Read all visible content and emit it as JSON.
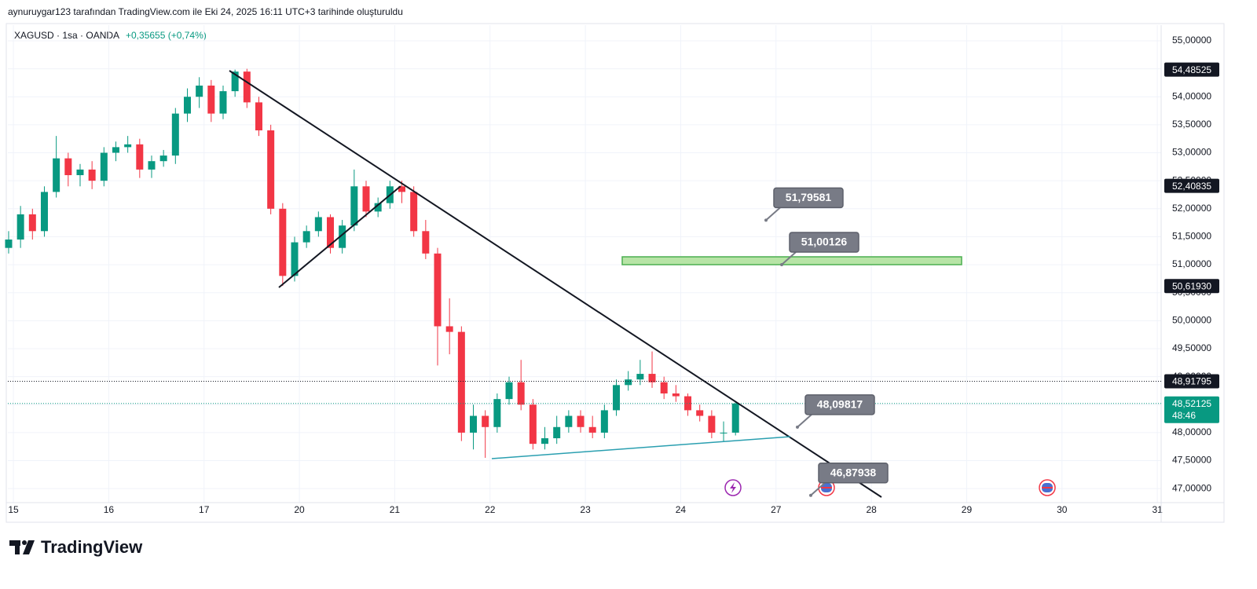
{
  "header": {
    "credit": "aynuruygar123 tarafından TradingView.com ile Eki 24, 2025 16:11 UTC+3 tarihinde oluşturuldu",
    "logo": "TradingView"
  },
  "chart_data": {
    "type": "candlestick",
    "title": "XAGUSD · 1sa · OANDA",
    "change": "+0,35655 (+0,74%)",
    "up_color": "#089981",
    "down_color": "#f23645",
    "grid": true,
    "x": [
      -0.05,
      0.075,
      0.2,
      0.325,
      0.45,
      0.575,
      0.7,
      0.825,
      0.95,
      1.075,
      1.2,
      1.325,
      1.45,
      1.575,
      1.7,
      1.825,
      1.95,
      2.075,
      2.2,
      2.325,
      2.45,
      2.575,
      2.7,
      2.825,
      2.95,
      3.075,
      3.2,
      3.325,
      3.45,
      3.575,
      3.7,
      3.825,
      3.95,
      4.075,
      4.2,
      4.325,
      4.45,
      4.575,
      4.7,
      4.825,
      4.95,
      5.075,
      5.2,
      5.325,
      5.45,
      5.575,
      5.7,
      5.825,
      5.95,
      6.075,
      6.2,
      6.325,
      6.45,
      6.575,
      6.7,
      6.825,
      6.95,
      7.075,
      7.2,
      7.325,
      7.45,
      7.575
    ],
    "open": [
      51.3,
      51.45,
      51.9,
      51.6,
      52.3,
      52.9,
      52.6,
      52.7,
      52.5,
      53.0,
      53.1,
      53.15,
      52.7,
      52.85,
      52.95,
      53.7,
      54.0,
      54.2,
      53.7,
      54.1,
      54.45,
      53.9,
      53.4,
      52.0,
      50.8,
      51.4,
      51.6,
      51.85,
      51.3,
      51.7,
      52.4,
      51.95,
      52.1,
      52.4,
      52.3,
      51.6,
      51.2,
      49.9,
      49.8,
      48.0,
      48.3,
      48.1,
      48.6,
      48.9,
      48.5,
      47.8,
      47.9,
      48.1,
      48.3,
      48.1,
      48.0,
      48.4,
      48.85,
      48.95,
      49.05,
      48.9,
      48.7,
      48.65,
      48.4,
      48.3,
      48.0,
      48.0
    ],
    "high": [
      51.6,
      52.05,
      52.0,
      52.4,
      53.3,
      53.0,
      52.8,
      52.85,
      53.1,
      53.2,
      53.3,
      53.25,
      52.95,
      53.05,
      53.8,
      54.15,
      54.35,
      54.3,
      54.2,
      54.485,
      54.5,
      54.0,
      53.5,
      52.1,
      51.5,
      51.7,
      51.95,
      51.9,
      51.8,
      52.7,
      52.5,
      52.2,
      52.5,
      52.5,
      52.4,
      51.8,
      51.3,
      50.4,
      49.9,
      48.5,
      48.4,
      48.7,
      49.0,
      49.3,
      48.6,
      48.1,
      48.3,
      48.4,
      48.4,
      48.3,
      48.5,
      48.95,
      49.1,
      49.3,
      49.45,
      49.0,
      48.85,
      48.7,
      48.5,
      48.4,
      48.2,
      48.55
    ],
    "low": [
      51.2,
      51.3,
      51.45,
      51.5,
      52.2,
      52.4,
      52.4,
      52.35,
      52.4,
      52.85,
      53.0,
      52.55,
      52.55,
      52.75,
      52.8,
      53.55,
      53.8,
      53.55,
      53.6,
      54.0,
      53.8,
      53.3,
      51.9,
      50.62,
      50.7,
      51.3,
      51.5,
      51.2,
      51.2,
      51.6,
      51.85,
      51.85,
      52.0,
      52.1,
      51.5,
      51.1,
      49.2,
      49.4,
      47.85,
      47.7,
      47.55,
      48.0,
      48.5,
      48.4,
      47.7,
      47.7,
      47.8,
      48.0,
      48.0,
      47.9,
      47.9,
      48.3,
      48.75,
      48.85,
      48.8,
      48.6,
      48.55,
      48.3,
      48.2,
      47.9,
      47.85,
      47.95
    ],
    "close": [
      51.45,
      51.9,
      51.6,
      52.3,
      52.9,
      52.6,
      52.7,
      52.5,
      53.0,
      53.1,
      53.15,
      52.7,
      52.85,
      52.95,
      53.7,
      54.0,
      54.2,
      53.7,
      54.1,
      54.45,
      53.9,
      53.4,
      52.0,
      50.8,
      51.4,
      51.6,
      51.85,
      51.3,
      51.7,
      52.4,
      51.95,
      52.1,
      52.4,
      52.3,
      51.6,
      51.2,
      49.9,
      49.8,
      48.0,
      48.3,
      48.1,
      48.6,
      48.9,
      48.5,
      47.8,
      47.9,
      48.1,
      48.3,
      48.1,
      48.0,
      48.4,
      48.85,
      48.95,
      49.05,
      48.9,
      48.7,
      48.65,
      48.4,
      48.3,
      48.0,
      48.0,
      48.52
    ],
    "xlim": [
      -0.058,
      12.04
    ],
    "xticks": [
      {
        "value": 0,
        "label": "15"
      },
      {
        "value": 1,
        "label": "16"
      },
      {
        "value": 2,
        "label": "17"
      },
      {
        "value": 3,
        "label": "20"
      },
      {
        "value": 4,
        "label": "21"
      },
      {
        "value": 5,
        "label": "22"
      },
      {
        "value": 6,
        "label": "23"
      },
      {
        "value": 7,
        "label": "24"
      },
      {
        "value": 8,
        "label": "27"
      },
      {
        "value": 9,
        "label": "28"
      },
      {
        "value": 10,
        "label": "29"
      },
      {
        "value": 11,
        "label": "30"
      },
      {
        "value": 12,
        "label": "31"
      }
    ],
    "ylim": [
      46.75,
      55.28
    ],
    "yticks": [
      {
        "value": 47,
        "label": "47,00000"
      },
      {
        "value": 47.5,
        "label": "47,50000"
      },
      {
        "value": 48,
        "label": "48,00000"
      },
      {
        "value": 48.5,
        "label": "48,50000"
      },
      {
        "value": 49,
        "label": "49,00000"
      },
      {
        "value": 49.5,
        "label": "49,50000"
      },
      {
        "value": 50,
        "label": "50,00000"
      },
      {
        "value": 50.5,
        "label": "50,50000"
      },
      {
        "value": 51,
        "label": "51,00000"
      },
      {
        "value": 51.5,
        "label": "51,50000"
      },
      {
        "value": 52,
        "label": "52,00000"
      },
      {
        "value": 52.5,
        "label": "52,50000"
      },
      {
        "value": 53,
        "label": "53,00000"
      },
      {
        "value": 53.5,
        "label": "53,50000"
      },
      {
        "value": 54,
        "label": "54,00000"
      },
      {
        "value": 54.5,
        "label": "54,50000"
      },
      {
        "value": 55,
        "label": "55,00000"
      }
    ],
    "price_tags": [
      {
        "value": 54.48525,
        "label": "54,48525"
      },
      {
        "value": 52.40835,
        "label": "52,40835"
      },
      {
        "value": 50.6193,
        "label": "50,61930"
      },
      {
        "value": 48.91795,
        "label": "48,91795"
      }
    ],
    "last_price": {
      "value": 48.52125,
      "label": "48,52125",
      "countdown": "48:46"
    },
    "annotations": [
      {
        "value": 51.79581,
        "label": "51,79581"
      },
      {
        "value": 51.00126,
        "label": "51,00126"
      },
      {
        "value": 48.09817,
        "label": "48,09817"
      },
      {
        "value": 46.87938,
        "label": "46,87938"
      }
    ]
  }
}
